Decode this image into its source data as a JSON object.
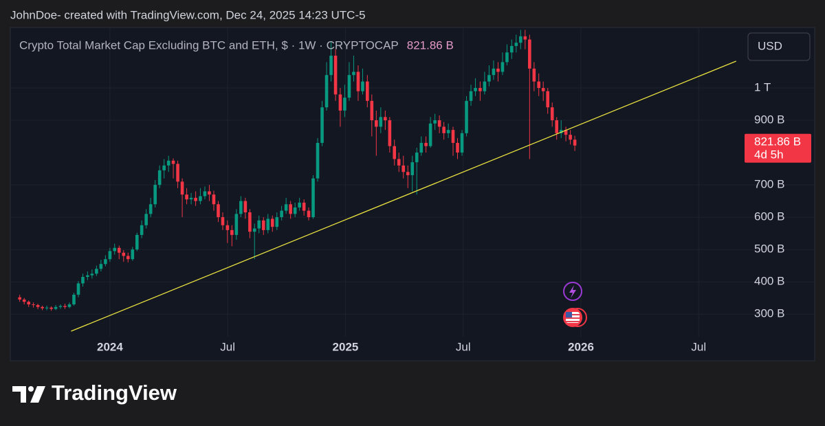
{
  "header": "JohnDoe- created with TradingView.com, Dec 24, 2025 14:23 UTC-5",
  "brand": "TradingView",
  "chart_data": {
    "type": "candlestick",
    "title": "Crypto Total Market Cap Excluding BTC and ETH, $ · 1W · CRYPTOCAP",
    "currency": "USD",
    "countdown": "4d 5h",
    "last_price": {
      "value": 821.86,
      "label": "821.86 B"
    },
    "up_color": "#089981",
    "down_color": "#f23645",
    "grid": true,
    "xlim": [
      2023.577,
      2026.686
    ],
    "xticks": [
      2024,
      {
        "value": 2024.5,
        "label": "Jul"
      },
      2025,
      {
        "value": 2025.5,
        "label": "Jul"
      },
      2026,
      {
        "value": 2026.5,
        "label": "Jul"
      }
    ],
    "ylim": [
      230,
      1183
    ],
    "yticks": [
      {
        "value": 300,
        "label": "300 B"
      },
      {
        "value": 400,
        "label": "400 B"
      },
      {
        "value": 500,
        "label": "500 B"
      },
      {
        "value": 600,
        "label": "600 B"
      },
      {
        "value": 700,
        "label": "700 B"
      },
      {
        "value": 900,
        "label": "900 B"
      },
      {
        "value": 1000,
        "label": "1 T"
      }
    ],
    "x": [
      2023.617,
      2023.636,
      2023.655,
      2023.675,
      2023.694,
      2023.713,
      2023.732,
      2023.751,
      2023.77,
      2023.79,
      2023.809,
      2023.828,
      2023.847,
      2023.866,
      2023.885,
      2023.905,
      2023.924,
      2023.943,
      2023.962,
      2023.981,
      2024.0,
      2024.02,
      2024.039,
      2024.058,
      2024.077,
      2024.096,
      2024.115,
      2024.135,
      2024.154,
      2024.173,
      2024.192,
      2024.211,
      2024.23,
      2024.249,
      2024.269,
      2024.288,
      2024.307,
      2024.326,
      2024.345,
      2024.364,
      2024.384,
      2024.403,
      2024.422,
      2024.441,
      2024.46,
      2024.479,
      2024.499,
      2024.518,
      2024.537,
      2024.556,
      2024.575,
      2024.594,
      2024.614,
      2024.633,
      2024.652,
      2024.671,
      2024.69,
      2024.709,
      2024.729,
      2024.748,
      2024.767,
      2024.786,
      2024.805,
      2024.824,
      2024.844,
      2024.863,
      2024.882,
      2024.901,
      2024.92,
      2024.939,
      2024.958,
      2024.978,
      2024.997,
      2025.016,
      2025.035,
      2025.054,
      2025.073,
      2025.093,
      2025.112,
      2025.131,
      2025.15,
      2025.169,
      2025.188,
      2025.208,
      2025.227,
      2025.246,
      2025.265,
      2025.284,
      2025.303,
      2025.322,
      2025.342,
      2025.361,
      2025.38,
      2025.399,
      2025.418,
      2025.437,
      2025.457,
      2025.476,
      2025.495,
      2025.514,
      2025.533,
      2025.552,
      2025.572,
      2025.591,
      2025.61,
      2025.629,
      2025.648,
      2025.667,
      2025.686,
      2025.706,
      2025.725,
      2025.744,
      2025.763,
      2025.782,
      2025.801,
      2025.821,
      2025.84,
      2025.859,
      2025.878,
      2025.897,
      2025.916,
      2025.936,
      2025.955,
      2025.974
    ],
    "open": [
      352,
      345,
      338,
      330,
      328,
      322,
      318,
      320,
      316,
      322,
      325,
      322,
      330,
      360,
      395,
      415,
      420,
      425,
      440,
      455,
      470,
      495,
      505,
      490,
      480,
      470,
      500,
      545,
      575,
      610,
      640,
      700,
      745,
      760,
      775,
      765,
      710,
      670,
      655,
      660,
      650,
      665,
      680,
      670,
      640,
      600,
      575,
      560,
      545,
      610,
      650,
      615,
      555,
      565,
      590,
      560,
      595,
      570,
      600,
      620,
      640,
      610,
      630,
      645,
      620,
      600,
      720,
      830,
      940,
      1040,
      1100,
      980,
      930,
      970,
      1040,
      1050,
      990,
      1020,
      960,
      900,
      880,
      910,
      900,
      820,
      780,
      760,
      740,
      730,
      770,
      800,
      830,
      820,
      890,
      900,
      880,
      860,
      870,
      830,
      800,
      860,
      960,
      990,
      1000,
      990,
      1020,
      1040,
      1060,
      1050,
      1080,
      1110,
      1130,
      1140,
      1160,
      1150,
      1060,
      1020,
      1000,
      990,
      940,
      900,
      860,
      870,
      855,
      840
    ],
    "high": [
      360,
      350,
      342,
      336,
      332,
      326,
      326,
      324,
      328,
      330,
      332,
      336,
      366,
      402,
      425,
      432,
      438,
      450,
      468,
      482,
      505,
      518,
      512,
      498,
      490,
      508,
      552,
      590,
      625,
      660,
      715,
      760,
      780,
      790,
      782,
      775,
      720,
      690,
      675,
      680,
      690,
      695,
      700,
      682,
      650,
      615,
      590,
      575,
      625,
      665,
      660,
      625,
      580,
      605,
      600,
      610,
      605,
      615,
      635,
      660,
      650,
      645,
      660,
      655,
      630,
      730,
      845,
      960,
      1080,
      1145,
      1120,
      1000,
      1010,
      1080,
      1100,
      1070,
      1060,
      1040,
      980,
      930,
      940,
      930,
      910,
      840,
      800,
      790,
      760,
      790,
      815,
      850,
      850,
      910,
      920,
      915,
      895,
      890,
      880,
      845,
      870,
      975,
      1010,
      1030,
      1020,
      1050,
      1070,
      1085,
      1080,
      1110,
      1135,
      1150,
      1165,
      1180,
      1180,
      1165,
      1080,
      1045,
      1020,
      1000,
      955,
      910,
      900,
      880,
      870,
      852
    ],
    "low": [
      338,
      330,
      322,
      320,
      315,
      312,
      312,
      310,
      312,
      316,
      316,
      318,
      326,
      352,
      385,
      405,
      410,
      418,
      432,
      448,
      462,
      484,
      470,
      462,
      460,
      465,
      495,
      535,
      565,
      600,
      630,
      690,
      720,
      740,
      720,
      690,
      600,
      640,
      640,
      635,
      640,
      655,
      650,
      620,
      585,
      560,
      520,
      510,
      530,
      600,
      595,
      535,
      470,
      550,
      545,
      550,
      555,
      560,
      590,
      610,
      595,
      600,
      620,
      605,
      590,
      595,
      710,
      820,
      930,
      1020,
      960,
      880,
      910,
      960,
      1020,
      960,
      980,
      940,
      850,
      790,
      860,
      870,
      800,
      760,
      740,
      720,
      690,
      680,
      670,
      790,
      800,
      815,
      870,
      860,
      840,
      845,
      790,
      780,
      790,
      850,
      945,
      975,
      960,
      980,
      1005,
      1025,
      1020,
      1040,
      1070,
      1090,
      1110,
      1120,
      1120,
      780,
      990,
      975,
      960,
      920,
      880,
      840,
      845,
      835,
      825,
      805
    ],
    "close": [
      345,
      338,
      330,
      328,
      322,
      318,
      320,
      316,
      322,
      325,
      322,
      330,
      360,
      395,
      415,
      420,
      425,
      440,
      455,
      470,
      495,
      505,
      490,
      480,
      470,
      500,
      545,
      575,
      610,
      640,
      700,
      745,
      760,
      775,
      765,
      710,
      670,
      655,
      660,
      650,
      665,
      680,
      670,
      640,
      600,
      575,
      560,
      545,
      610,
      650,
      615,
      555,
      565,
      590,
      560,
      595,
      570,
      600,
      620,
      640,
      610,
      630,
      645,
      620,
      600,
      720,
      830,
      940,
      1040,
      1100,
      980,
      930,
      970,
      1040,
      1050,
      990,
      1020,
      960,
      900,
      880,
      910,
      900,
      820,
      780,
      760,
      740,
      730,
      770,
      800,
      830,
      820,
      890,
      900,
      880,
      860,
      870,
      830,
      800,
      860,
      960,
      990,
      1000,
      990,
      1020,
      1040,
      1060,
      1050,
      1080,
      1110,
      1130,
      1140,
      1160,
      1150,
      1060,
      1020,
      1000,
      990,
      940,
      900,
      860,
      870,
      855,
      840,
      821.86
    ],
    "trendline": {
      "x": [
        2023.835,
        2026.659
      ],
      "values": [
        247,
        1083
      ],
      "color": "#e8e040"
    }
  }
}
